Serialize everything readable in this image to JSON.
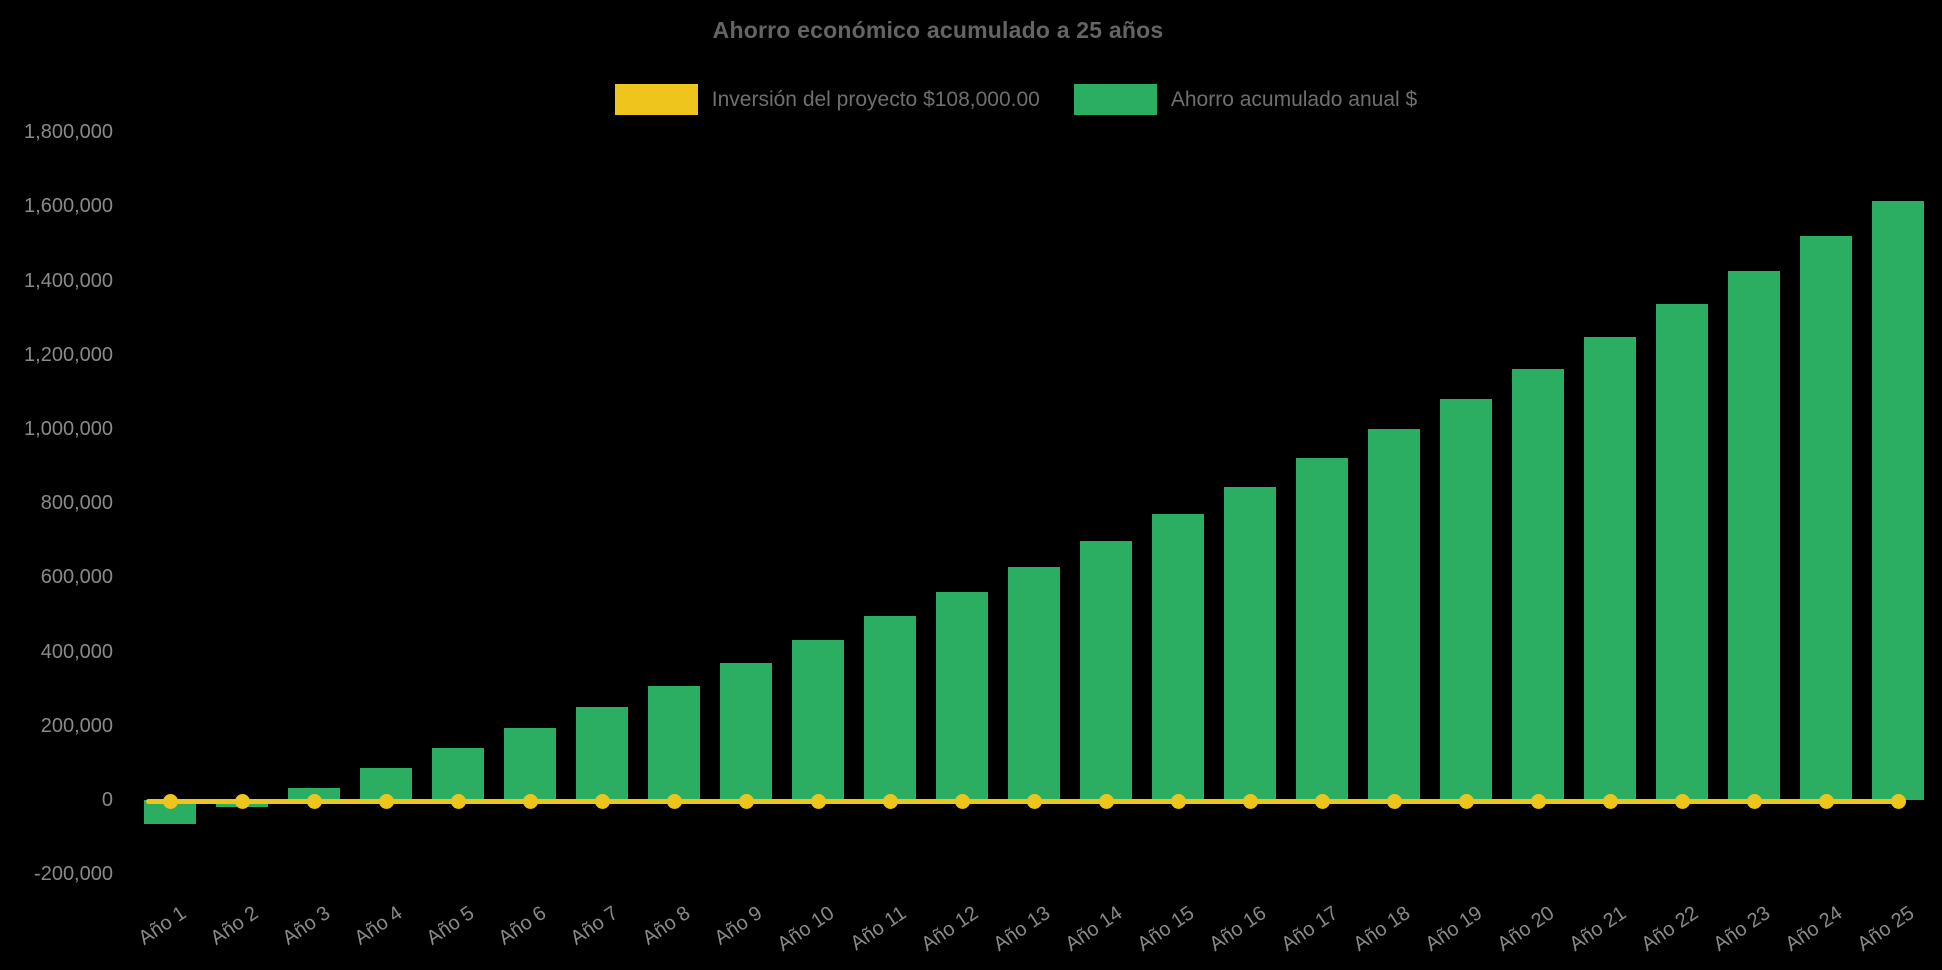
{
  "figure": {
    "title": "Ahorro económico acumulado a 25 años",
    "background_color": "#000000",
    "text_color_title": "#646464",
    "text_color_ticks": "#8a8a8a"
  },
  "legend": {
    "position": "top-center",
    "items": [
      {
        "label": "Inversión del proyecto $108,000.00",
        "color": "#EDC51D",
        "series_type": "line"
      },
      {
        "label": "Ahorro acumulado anual $",
        "color": "#2BAD62",
        "series_type": "bar"
      }
    ]
  },
  "chart_data": {
    "type": "bar",
    "title": "Ahorro económico acumulado a 25 años",
    "xlabel": "",
    "ylabel": "",
    "grid": false,
    "legend_position": "top",
    "ylim": [
      -200000,
      1800000
    ],
    "y_ticks": [
      -200000,
      0,
      200000,
      400000,
      600000,
      800000,
      1000000,
      1200000,
      1400000,
      1600000,
      1800000
    ],
    "categories": [
      "Año 1",
      "Año 2",
      "Año 3",
      "Año 4",
      "Año 5",
      "Año 6",
      "Año 7",
      "Año 8",
      "Año 9",
      "Año 10",
      "Año 11",
      "Año 12",
      "Año 13",
      "Año 14",
      "Año 15",
      "Año 16",
      "Año 17",
      "Año 18",
      "Año 19",
      "Año 20",
      "Año 21",
      "Año 22",
      "Año 23",
      "Año 24",
      "Año 25"
    ],
    "series": [
      {
        "name": "Ahorro acumulado anual $",
        "type": "bar",
        "color": "#2BAD62",
        "values": [
          -65000,
          -18000,
          32000,
          86000,
          140000,
          195000,
          251000,
          308000,
          370000,
          432000,
          497000,
          560000,
          629000,
          699000,
          770000,
          845000,
          921000,
          1000000,
          1080000,
          1161000,
          1247000,
          1337000,
          1426000,
          1520000,
          1615000
        ]
      },
      {
        "name": "Inversión del proyecto $108,000.00",
        "type": "line",
        "color": "#EDC51D",
        "marker": "circle",
        "values": [
          0,
          0,
          0,
          0,
          0,
          0,
          0,
          0,
          0,
          0,
          0,
          0,
          0,
          0,
          0,
          0,
          0,
          0,
          0,
          0,
          0,
          0,
          0,
          0,
          0
        ]
      }
    ]
  }
}
